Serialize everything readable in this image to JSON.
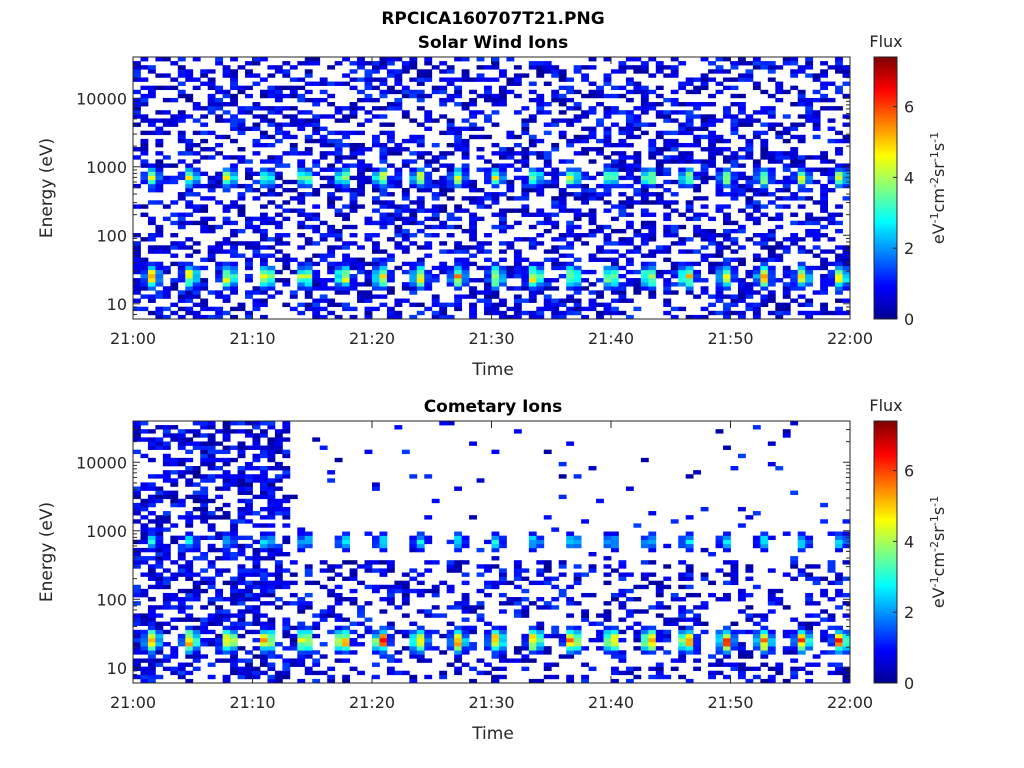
{
  "figure_title": "RPCICA160707T21.PNG",
  "colormap": [
    "#00008f",
    "#0000ff",
    "#0080ff",
    "#00ffff",
    "#80ff80",
    "#ffff00",
    "#ff8000",
    "#ff0000",
    "#800000"
  ],
  "chart_data": [
    {
      "type": "heatmap",
      "title": "Solar Wind Ions",
      "xlabel": "Time",
      "ylabel": "Energy (eV)",
      "x_ticks": [
        "21:00",
        "21:10",
        "21:20",
        "21:30",
        "21:40",
        "21:50",
        "22:00"
      ],
      "y_ticks": [
        "10",
        "100",
        "1000",
        "10000"
      ],
      "yscale": "log",
      "ylim": [
        6,
        40000
      ],
      "xlim": [
        "21:00",
        "22:00"
      ],
      "colorbar": {
        "title": "Flux",
        "label": "eV-1cm-2sr-1s-1",
        "ticks": [
          "0",
          "2",
          "4",
          "6"
        ],
        "range": [
          0,
          7.4
        ]
      },
      "bands": [
        {
          "energy_eV": 700,
          "period_min": 3.2,
          "peak_flux": 4.5
        },
        {
          "energy_eV": 25,
          "period_min": 3.2,
          "peak_flux": 5.0
        }
      ],
      "background": "sparse low-flux counts (0-2) across all energies and times"
    },
    {
      "type": "heatmap",
      "title": "Cometary Ions",
      "xlabel": "Time",
      "ylabel": "Energy (eV)",
      "x_ticks": [
        "21:00",
        "21:10",
        "21:20",
        "21:30",
        "21:40",
        "21:50",
        "22:00"
      ],
      "y_ticks": [
        "10",
        "100",
        "1000",
        "10000"
      ],
      "yscale": "log",
      "ylim": [
        6,
        40000
      ],
      "xlim": [
        "21:00",
        "22:00"
      ],
      "colorbar": {
        "title": "Flux",
        "label": "eV-1cm-2sr-1s-1",
        "ticks": [
          "0",
          "2",
          "4",
          "6"
        ],
        "range": [
          0,
          7.4
        ]
      },
      "bands": [
        {
          "energy_eV": 700,
          "period_min": 3.2,
          "peak_flux": 2.8
        },
        {
          "energy_eV": 25,
          "period_min": 3.2,
          "peak_flux": 6.0
        }
      ],
      "background": "dense low-flux counts until ~21:13, sparse afterwards"
    }
  ]
}
